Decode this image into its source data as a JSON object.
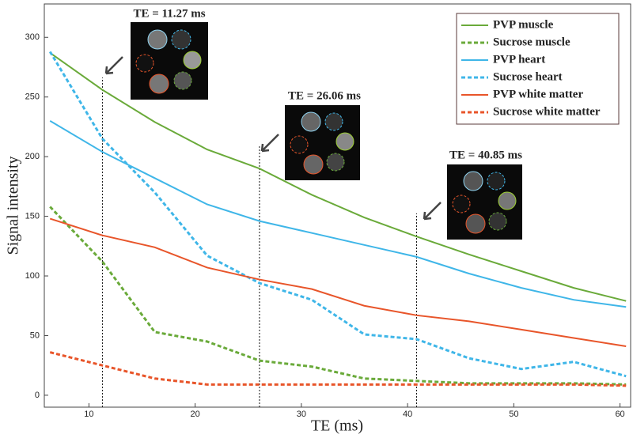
{
  "chart_data": {
    "type": "line",
    "xlabel": "TE (ms)",
    "ylabel": "Signal intensity",
    "x": [
      6.34,
      11.27,
      16.2,
      21.13,
      26.06,
      30.99,
      35.92,
      40.85,
      45.78,
      50.71,
      55.64,
      60.57
    ],
    "series": [
      {
        "name": "PVP muscle",
        "color": "#6aaa3a",
        "dashed": false,
        "values": [
          287,
          256,
          229,
          206,
          190,
          168,
          149,
          133,
          118,
          104,
          90,
          79
        ]
      },
      {
        "name": "Sucrose muscle",
        "color": "#6aaa3a",
        "dashed": true,
        "values": [
          158,
          112,
          53,
          45,
          29,
          24,
          14,
          12,
          10,
          10,
          10,
          9
        ]
      },
      {
        "name": "PVP heart",
        "color": "#3fb6e8",
        "dashed": false,
        "values": [
          230,
          204,
          182,
          160,
          146,
          136,
          126,
          116,
          102,
          90,
          80,
          74
        ]
      },
      {
        "name": "Sucrose heart",
        "color": "#3fb6e8",
        "dashed": true,
        "values": [
          288,
          215,
          170,
          117,
          94,
          80,
          51,
          47,
          31,
          22,
          28,
          16
        ]
      },
      {
        "name": "PVP white matter",
        "color": "#e8552a",
        "dashed": false,
        "values": [
          148,
          134,
          124,
          107,
          97,
          89,
          75,
          67,
          62,
          55,
          48,
          41
        ]
      },
      {
        "name": "Sucrose white matter",
        "color": "#e8552a",
        "dashed": true,
        "values": [
          36,
          25,
          14,
          9,
          9,
          9,
          9,
          9,
          9,
          9,
          9,
          8
        ]
      }
    ],
    "annotations": [
      {
        "text": "TE = 11.27 ms",
        "x": 11.27
      },
      {
        "text": "TE = 26.06 ms",
        "x": 26.06
      },
      {
        "text": "TE = 40.85 ms",
        "x": 40.85
      }
    ],
    "xlim": [
      5.8,
      61
    ],
    "xticks": [
      10,
      20,
      30,
      40,
      50,
      60
    ],
    "ylim": [
      -10,
      328
    ],
    "yticks": [
      0,
      50,
      100,
      150,
      200,
      250,
      300
    ],
    "legend": "top-right"
  }
}
